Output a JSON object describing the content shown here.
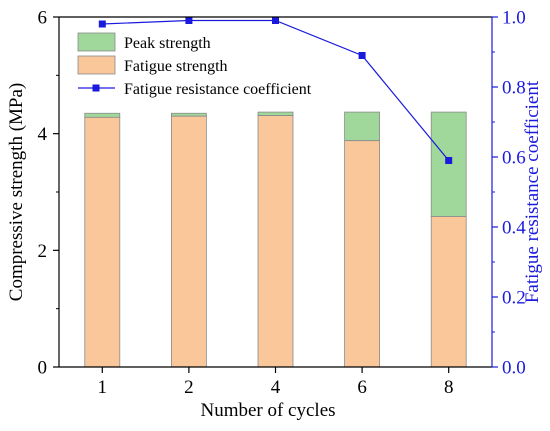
{
  "chart_data": {
    "type": "bar",
    "categories": [
      "1",
      "2",
      "4",
      "6",
      "8"
    ],
    "xlabel": "Number of cycles",
    "ylabel": "Compressive strength (MPa)",
    "y2label": "Fatigue resistance coefficient",
    "ylim": [
      0,
      6
    ],
    "y2lim": [
      0.0,
      1.0
    ],
    "yticks": [
      "0",
      "2",
      "4",
      "6"
    ],
    "y2ticks": [
      "0.0",
      "0.2",
      "0.4",
      "0.6",
      "0.8",
      "1.0"
    ],
    "stacked": true,
    "series": [
      {
        "name": "Fatigue strength",
        "kind": "bar",
        "values": [
          4.28,
          4.3,
          4.31,
          3.88,
          2.58
        ]
      },
      {
        "name": "Peak strength",
        "kind": "bar",
        "total_values": [
          4.35,
          4.35,
          4.37,
          4.37,
          4.37
        ]
      },
      {
        "name": "Fatigue resistance coefficient",
        "kind": "line",
        "axis": "right",
        "values": [
          0.98,
          0.99,
          0.99,
          0.89,
          0.59
        ]
      }
    ],
    "legend": {
      "placement": "top-left",
      "items": [
        "Peak strength",
        "Fatigue strength",
        "Fatigue resistance coefficient"
      ]
    },
    "grid": false
  },
  "colors": {
    "peak": "#9fd89a",
    "fatigue": "#f9c79a",
    "line": "#1a1adf",
    "axis": "#000000",
    "right_axis": "#1a1adf"
  }
}
